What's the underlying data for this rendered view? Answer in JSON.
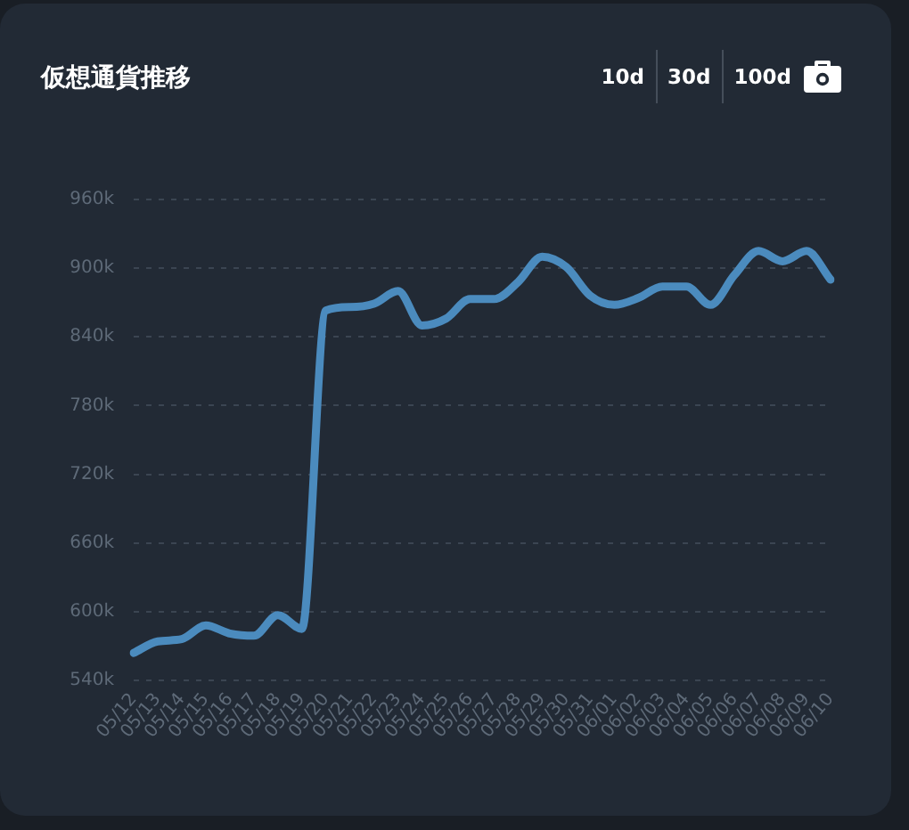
{
  "chart_data": {
    "type": "line",
    "title": "仮想通貨推移",
    "annotations": [
      "10d",
      "30d",
      "100d"
    ],
    "categories": [
      "05/12",
      "05/13",
      "05/14",
      "05/15",
      "05/16",
      "05/17",
      "05/18",
      "05/19",
      "05/20",
      "05/21",
      "05/22",
      "05/23",
      "05/24",
      "05/25",
      "05/26",
      "05/27",
      "05/28",
      "05/29",
      "05/30",
      "05/31",
      "06/01",
      "06/02",
      "06/03",
      "06/04",
      "06/05",
      "06/06",
      "06/07",
      "06/08",
      "06/09",
      "06/10"
    ],
    "values": [
      564000,
      574000,
      576000,
      588000,
      581000,
      579000,
      597000,
      585000,
      863000,
      866000,
      869000,
      880000,
      850000,
      856000,
      873000,
      873000,
      888000,
      910000,
      901000,
      876000,
      868000,
      874000,
      884000,
      884000,
      868000,
      894000,
      915000,
      906000,
      915000,
      890000
    ],
    "color": "#4b8bbe",
    "marker": "none",
    "line_style": "solid",
    "ylim": [
      540000,
      960000
    ],
    "yticks": [
      {
        "value": 540000,
        "label": "540k"
      },
      {
        "value": 600000,
        "label": "600k"
      },
      {
        "value": 660000,
        "label": "660k"
      },
      {
        "value": 720000,
        "label": "720k"
      },
      {
        "value": 780000,
        "label": "780k"
      },
      {
        "value": 840000,
        "label": "840k"
      },
      {
        "value": 900000,
        "label": "900k"
      },
      {
        "value": 960000,
        "label": "960k"
      }
    ],
    "grid": "y",
    "legend": false
  }
}
